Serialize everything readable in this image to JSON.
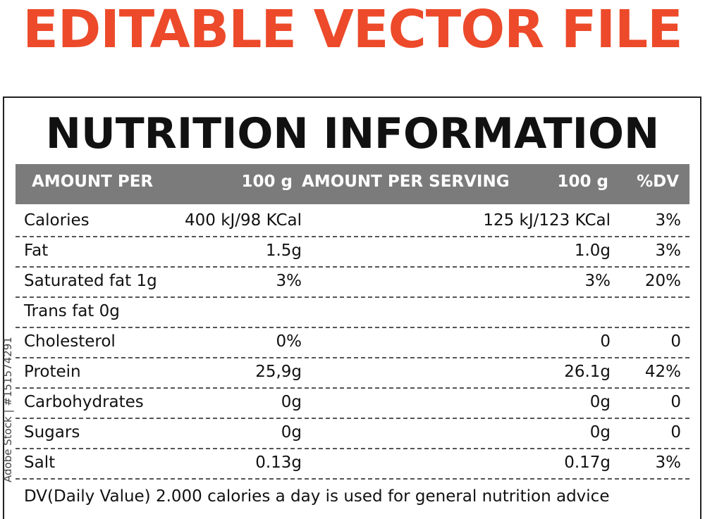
{
  "banner": "EDITABLE VECTOR FILE",
  "title": "NUTRITION INFORMATION",
  "table": {
    "header": [
      "AMOUNT PER",
      "100 g",
      "AMOUNT PER SERVING",
      "100 g",
      "%DV"
    ],
    "rows": [
      [
        "Calories",
        "400 kJ/98 KCal",
        "125 kJ/123 KCal",
        "3%"
      ],
      [
        "Fat",
        "1.5g",
        "1.0g",
        "3%"
      ],
      [
        "Saturated fat 1g",
        "3%",
        "3%",
        "20%"
      ],
      [
        "Trans fat 0g"
      ],
      [
        "Cholesterol",
        "0%",
        "0",
        "0"
      ],
      [
        "Protein",
        "25,9g",
        "26.1g",
        "42%"
      ],
      [
        "Carbohydrates",
        "0g",
        "0g",
        "0"
      ],
      [
        "Sugars",
        "0g",
        "0g",
        "0"
      ],
      [
        "Salt",
        "0.13g",
        "0.17g",
        "3%"
      ]
    ]
  },
  "footnote": "DV(Daily Value) 2.000 calories a day is used for general nutrition advice",
  "watermark": "Adobe Stock | #151574291"
}
